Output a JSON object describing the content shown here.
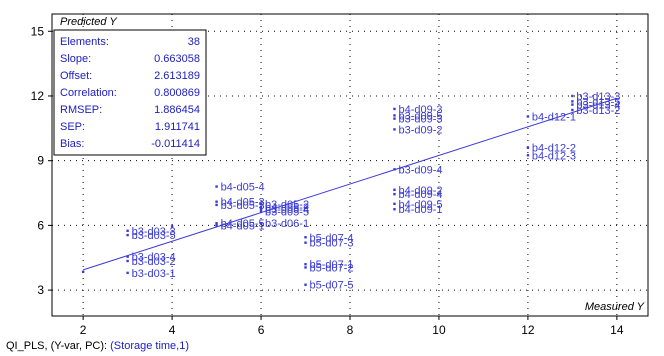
{
  "footer": {
    "prefix": "QI_PLS, (Y-var, PC):",
    "selection": "(Storage time,1)"
  },
  "chart_data": {
    "type": "scatter",
    "xlabel": "Measured Y",
    "ylabel": "Predicted Y",
    "xlim": [
      1.3,
      14.7
    ],
    "ylim": [
      1.8,
      15.8
    ],
    "x_ticks": [
      2,
      4,
      6,
      8,
      10,
      12,
      14
    ],
    "y_ticks": [
      3,
      6,
      9,
      12,
      15
    ],
    "grid": "dotted",
    "point_color": "#3a3ad8",
    "line_color": "#3a3ad8",
    "stats_color": "#2020c0",
    "stats": [
      {
        "label": "Elements:",
        "value": "38"
      },
      {
        "label": "Slope:",
        "value": "0.663058"
      },
      {
        "label": "Offset:",
        "value": "2.613189"
      },
      {
        "label": "Correlation:",
        "value": "0.800869"
      },
      {
        "label": "RMSEP:",
        "value": "1.886454"
      },
      {
        "label": "SEP:",
        "value": "1.911741"
      },
      {
        "label": "Bias:",
        "value": "-0.011414"
      }
    ],
    "regression": {
      "slope": 0.663058,
      "offset": 2.613189,
      "x_range": [
        2,
        14
      ]
    },
    "points": [
      {
        "x": 2,
        "y": 3.85,
        "label": ""
      },
      {
        "x": 3,
        "y": 5.75,
        "label": "b3-d03-3"
      },
      {
        "x": 3,
        "y": 5.55,
        "label": "b3-d03-5"
      },
      {
        "x": 3,
        "y": 4.55,
        "label": "b3-d03-4"
      },
      {
        "x": 3,
        "y": 4.35,
        "label": "b3-d03-2"
      },
      {
        "x": 3,
        "y": 3.8,
        "label": "b3-d03-1"
      },
      {
        "x": 4,
        "y": 5.95,
        "label": ""
      },
      {
        "x": 5,
        "y": 7.8,
        "label": "b4-d05-4"
      },
      {
        "x": 5,
        "y": 7.1,
        "label": "b4-d05-3"
      },
      {
        "x": 5,
        "y": 6.95,
        "label": "b3-d05-3"
      },
      {
        "x": 5,
        "y": 6.1,
        "label": "b4-d05-5"
      },
      {
        "x": 5,
        "y": 6.0,
        "label": "b4-d05-1"
      },
      {
        "x": 6,
        "y": 6.1,
        "label": "b3-d06-1"
      },
      {
        "x": 6,
        "y": 7.0,
        "label": "b3-d05-2"
      },
      {
        "x": 6,
        "y": 6.85,
        "label": "b4-d05-2"
      },
      {
        "x": 6,
        "y": 6.75,
        "label": "b3-d05-4"
      },
      {
        "x": 6,
        "y": 6.65,
        "label": "b3-d05-5"
      },
      {
        "x": 7,
        "y": 5.45,
        "label": "b5-d07-4"
      },
      {
        "x": 7,
        "y": 5.2,
        "label": "b5-d07-3"
      },
      {
        "x": 7,
        "y": 4.2,
        "label": "b5-d07-1"
      },
      {
        "x": 7,
        "y": 4.05,
        "label": "b5-d07-2"
      },
      {
        "x": 7,
        "y": 3.25,
        "label": "b5-d07-5"
      },
      {
        "x": 9,
        "y": 11.4,
        "label": "b4-d09-3"
      },
      {
        "x": 9,
        "y": 11.1,
        "label": "b3-d09-5"
      },
      {
        "x": 9,
        "y": 10.95,
        "label": "b3-d09-3"
      },
      {
        "x": 9,
        "y": 10.45,
        "label": "b3-d09-2"
      },
      {
        "x": 9,
        "y": 8.6,
        "label": "b3-d09-4"
      },
      {
        "x": 9,
        "y": 7.65,
        "label": "b4-d09-2"
      },
      {
        "x": 9,
        "y": 7.45,
        "label": "b4-d09-4"
      },
      {
        "x": 9,
        "y": 7.0,
        "label": "b4-d09-5"
      },
      {
        "x": 9,
        "y": 6.75,
        "label": "b4-d09-1"
      },
      {
        "x": 12,
        "y": 11.05,
        "label": "b4-d12-1"
      },
      {
        "x": 12,
        "y": 9.6,
        "label": "b4-d12-2"
      },
      {
        "x": 12,
        "y": 9.25,
        "label": "b4-d12-3"
      },
      {
        "x": 13,
        "y": 12.0,
        "label": "b3-d13-3"
      },
      {
        "x": 13,
        "y": 11.75,
        "label": "b3-d13-5"
      },
      {
        "x": 13,
        "y": 11.6,
        "label": "b3-d13-4"
      },
      {
        "x": 13,
        "y": 11.35,
        "label": "b3-d13-2"
      }
    ]
  }
}
